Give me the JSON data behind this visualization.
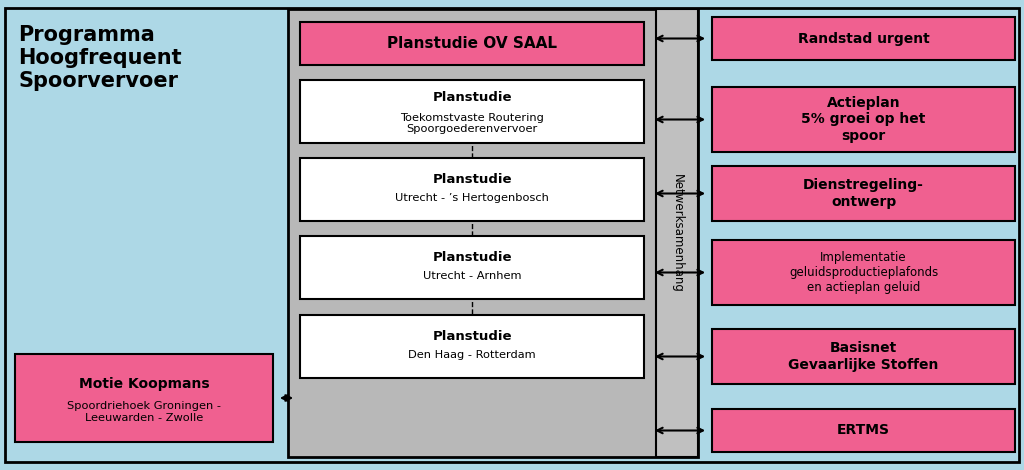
{
  "bg_color": "#add8e6",
  "pink_fill": "#f06090",
  "gray_fill": "#b8b8b8",
  "netwerk_fill": "#c0c0c0",
  "white_fill": "#ffffff",
  "title_text": "Programma\nHoogfrequent\nSpoorvervoer",
  "ovsaal_text": "Planstudie OV SAAL",
  "planstudie_boxes": [
    {
      "bold": "Planstudie",
      "sub": "Toekomstvaste Routering\nSpoorgoederenvervoer"
    },
    {
      "bold": "Planstudie",
      "sub": "Utrecht - ’s Hertogenbosch"
    },
    {
      "bold": "Planstudie",
      "sub": "Utrecht - Arnhem"
    },
    {
      "bold": "Planstudie",
      "sub": "Den Haag - Rotterdam"
    }
  ],
  "motie_bold": "Motie Koopmans",
  "motie_sub": "Spoordriehoek Groningen -\nLeeuwarden - Zwolle",
  "netwerk_text": "Netwerksamenhang",
  "right_boxes": [
    {
      "bold": true,
      "text": "Randstad urgent"
    },
    {
      "bold": true,
      "text": "Actieplan\n5% groei op het\nspoor"
    },
    {
      "bold": true,
      "text": "Dienstregeling-\nontwerp"
    },
    {
      "bold": false,
      "text": "Implementatie\ngeluidsproductieplafonds\nen actieplan geluid"
    },
    {
      "bold": true,
      "text": "Basisnet\nGevaarlijke Stoffen"
    },
    {
      "bold": true,
      "text": "ERTMS"
    }
  ]
}
